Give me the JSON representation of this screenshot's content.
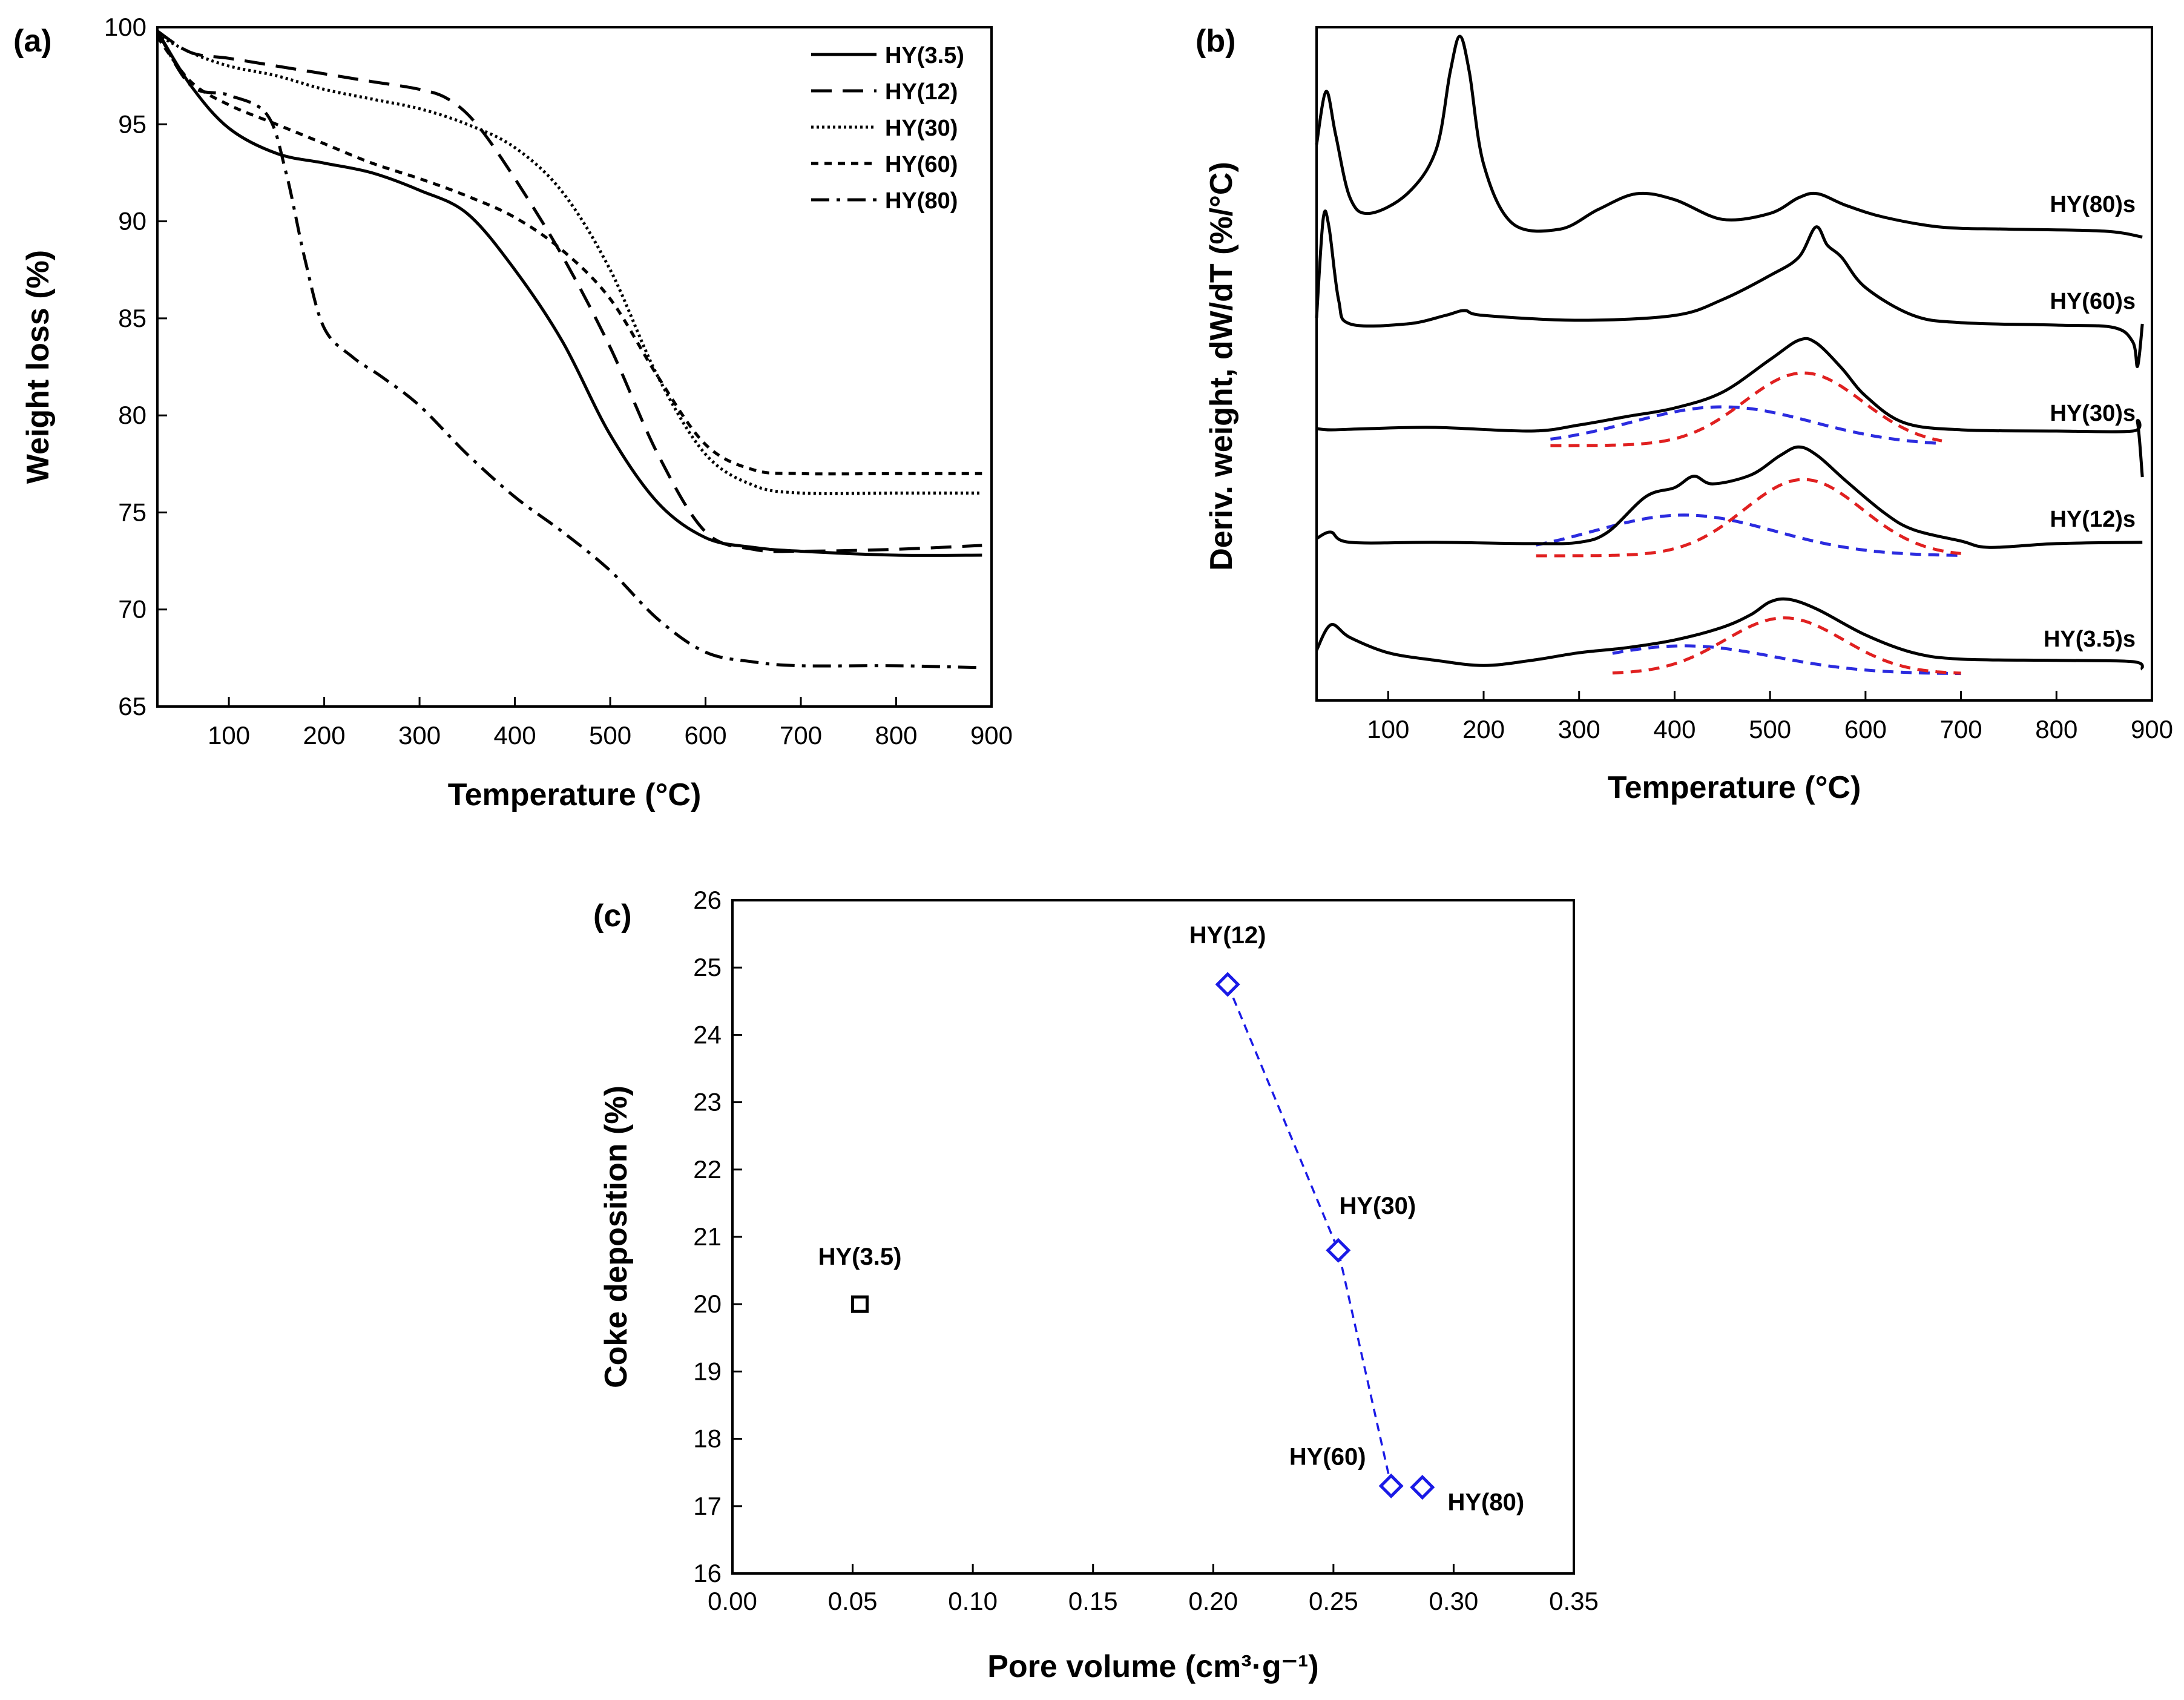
{
  "chart_data": [
    {
      "panel": "(a)",
      "type": "line",
      "xlabel": "Temperature (°C)",
      "ylabel": "Weight loss (%)",
      "xlim": [
        25,
        900
      ],
      "ylim": [
        65,
        100
      ],
      "xticks": [
        100,
        200,
        300,
        400,
        500,
        600,
        700,
        800,
        900
      ],
      "yticks": [
        65,
        70,
        75,
        80,
        85,
        90,
        95,
        100
      ],
      "legend_position": "top-right",
      "series": [
        {
          "name": "HY(3.5)",
          "style": "solid",
          "points": [
            [
              25,
              99.8
            ],
            [
              60,
              97
            ],
            [
              100,
              94.8
            ],
            [
              150,
              93.5
            ],
            [
              200,
              93
            ],
            [
              250,
              92.5
            ],
            [
              300,
              91.6
            ],
            [
              350,
              90.4
            ],
            [
              400,
              87.5
            ],
            [
              450,
              83.8
            ],
            [
              500,
              79
            ],
            [
              550,
              75.5
            ],
            [
              600,
              73.7
            ],
            [
              650,
              73.2
            ],
            [
              700,
              73
            ],
            [
              800,
              72.8
            ],
            [
              890,
              72.8
            ]
          ]
        },
        {
          "name": "HY(12)",
          "style": "dashed",
          "points": [
            [
              25,
              99.8
            ],
            [
              60,
              98.7
            ],
            [
              100,
              98.4
            ],
            [
              150,
              98
            ],
            [
              200,
              97.6
            ],
            [
              250,
              97.2
            ],
            [
              300,
              96.8
            ],
            [
              330,
              96.3
            ],
            [
              360,
              95
            ],
            [
              400,
              92.2
            ],
            [
              450,
              88.2
            ],
            [
              500,
              83.5
            ],
            [
              550,
              78
            ],
            [
              600,
              74
            ],
            [
              650,
              73.1
            ],
            [
              700,
              73
            ],
            [
              800,
              73.1
            ],
            [
              890,
              73.3
            ]
          ]
        },
        {
          "name": "HY(30)",
          "style": "dotted",
          "points": [
            [
              25,
              99.6
            ],
            [
              60,
              98.7
            ],
            [
              100,
              98
            ],
            [
              150,
              97.5
            ],
            [
              200,
              96.8
            ],
            [
              250,
              96.3
            ],
            [
              300,
              95.8
            ],
            [
              350,
              95
            ],
            [
              400,
              93.8
            ],
            [
              450,
              91.5
            ],
            [
              500,
              87.5
            ],
            [
              550,
              82
            ],
            [
              600,
              78
            ],
            [
              650,
              76.4
            ],
            [
              700,
              76
            ],
            [
              800,
              76
            ],
            [
              890,
              76
            ]
          ]
        },
        {
          "name": "HY(60)",
          "style": "short-dash",
          "points": [
            [
              25,
              99.5
            ],
            [
              60,
              97.2
            ],
            [
              100,
              96
            ],
            [
              150,
              95
            ],
            [
              200,
              94
            ],
            [
              250,
              93
            ],
            [
              300,
              92.2
            ],
            [
              350,
              91.3
            ],
            [
              400,
              90.2
            ],
            [
              450,
              88.5
            ],
            [
              500,
              86
            ],
            [
              550,
              82
            ],
            [
              600,
              78.5
            ],
            [
              650,
              77.2
            ],
            [
              700,
              77
            ],
            [
              800,
              77
            ],
            [
              890,
              77
            ]
          ]
        },
        {
          "name": "HY(80)",
          "style": "dash-dot",
          "points": [
            [
              25,
              99.8
            ],
            [
              60,
              97
            ],
            [
              100,
              96.5
            ],
            [
              140,
              95.5
            ],
            [
              160,
              92.5
            ],
            [
              180,
              88
            ],
            [
              200,
              84.5
            ],
            [
              230,
              83
            ],
            [
              260,
              82
            ],
            [
              300,
              80.5
            ],
            [
              350,
              78
            ],
            [
              400,
              75.8
            ],
            [
              450,
              74
            ],
            [
              500,
              72
            ],
            [
              550,
              69.5
            ],
            [
              600,
              67.8
            ],
            [
              650,
              67.3
            ],
            [
              700,
              67.1
            ],
            [
              800,
              67.1
            ],
            [
              890,
              67
            ]
          ]
        }
      ]
    },
    {
      "panel": "(b)",
      "type": "line",
      "xlabel": "Temperature (°C)",
      "ylabel": "Deriv. weight, dW/dT (%/°C)",
      "xlim": [
        25,
        900
      ],
      "xticks": [
        100,
        200,
        300,
        400,
        500,
        600,
        700,
        800,
        900
      ],
      "y_scale": "arbitrary, stacked traces",
      "series": [
        {
          "name": "HY(80)s",
          "points": [
            [
              25,
              0.45
            ],
            [
              35,
              0.72
            ],
            [
              45,
              0.5
            ],
            [
              60,
              0.18
            ],
            [
              80,
              0.1
            ],
            [
              120,
              0.2
            ],
            [
              150,
              0.42
            ],
            [
              165,
              0.82
            ],
            [
              175,
              1.0
            ],
            [
              185,
              0.82
            ],
            [
              200,
              0.35
            ],
            [
              230,
              0.05
            ],
            [
              280,
              0.02
            ],
            [
              320,
              0.12
            ],
            [
              360,
              0.2
            ],
            [
              400,
              0.17
            ],
            [
              450,
              0.07
            ],
            [
              500,
              0.1
            ],
            [
              530,
              0.18
            ],
            [
              550,
              0.2
            ],
            [
              580,
              0.14
            ],
            [
              620,
              0.08
            ],
            [
              680,
              0.03
            ],
            [
              750,
              0.02
            ],
            [
              850,
              0.01
            ],
            [
              890,
              -0.02
            ]
          ]
        },
        {
          "name": "HY(60)s",
          "points": [
            [
              25,
              0.1
            ],
            [
              32,
              0.92
            ],
            [
              38,
              0.85
            ],
            [
              48,
              0.25
            ],
            [
              60,
              0.05
            ],
            [
              120,
              0.05
            ],
            [
              160,
              0.12
            ],
            [
              180,
              0.16
            ],
            [
              200,
              0.12
            ],
            [
              300,
              0.08
            ],
            [
              400,
              0.12
            ],
            [
              450,
              0.25
            ],
            [
              500,
              0.45
            ],
            [
              530,
              0.6
            ],
            [
              548,
              0.85
            ],
            [
              560,
              0.7
            ],
            [
              575,
              0.6
            ],
            [
              600,
              0.35
            ],
            [
              650,
              0.12
            ],
            [
              700,
              0.06
            ],
            [
              800,
              0.04
            ],
            [
              860,
              0.02
            ],
            [
              880,
              -0.1
            ],
            [
              885,
              -0.3
            ],
            [
              890,
              0.05
            ]
          ]
        },
        {
          "name": "HY(30)s",
          "points": [
            [
              25,
              0.05
            ],
            [
              40,
              0.04
            ],
            [
              80,
              0.05
            ],
            [
              150,
              0.06
            ],
            [
              250,
              0.03
            ],
            [
              300,
              0.08
            ],
            [
              350,
              0.15
            ],
            [
              400,
              0.22
            ],
            [
              450,
              0.35
            ],
            [
              500,
              0.62
            ],
            [
              530,
              0.78
            ],
            [
              548,
              0.76
            ],
            [
              575,
              0.55
            ],
            [
              600,
              0.32
            ],
            [
              640,
              0.1
            ],
            [
              700,
              0.04
            ],
            [
              800,
              0.03
            ],
            [
              880,
              0.03
            ],
            [
              885,
              0.1
            ],
            [
              890,
              -0.35
            ]
          ]
        },
        {
          "name": "HY(12)s",
          "points": [
            [
              25,
              0.05
            ],
            [
              40,
              0.1
            ],
            [
              60,
              0.02
            ],
            [
              150,
              0.02
            ],
            [
              250,
              0.01
            ],
            [
              300,
              0.02
            ],
            [
              330,
              0.1
            ],
            [
              370,
              0.38
            ],
            [
              400,
              0.45
            ],
            [
              420,
              0.54
            ],
            [
              440,
              0.48
            ],
            [
              480,
              0.55
            ],
            [
              510,
              0.7
            ],
            [
              530,
              0.77
            ],
            [
              550,
              0.7
            ],
            [
              580,
              0.5
            ],
            [
              620,
              0.25
            ],
            [
              650,
              0.12
            ],
            [
              700,
              0.03
            ],
            [
              730,
              -0.02
            ],
            [
              800,
              0.01
            ],
            [
              890,
              0.02
            ]
          ]
        },
        {
          "name": "HY(3.5)s",
          "points": [
            [
              25,
              0.1
            ],
            [
              40,
              0.3
            ],
            [
              60,
              0.2
            ],
            [
              100,
              0.08
            ],
            [
              150,
              0.02
            ],
            [
              200,
              -0.02
            ],
            [
              250,
              0.02
            ],
            [
              300,
              0.08
            ],
            [
              350,
              0.12
            ],
            [
              400,
              0.18
            ],
            [
              450,
              0.28
            ],
            [
              480,
              0.38
            ],
            [
              500,
              0.48
            ],
            [
              520,
              0.5
            ],
            [
              550,
              0.42
            ],
            [
              600,
              0.22
            ],
            [
              650,
              0.08
            ],
            [
              700,
              0.03
            ],
            [
              800,
              0.02
            ],
            [
              880,
              0.01
            ],
            [
              890,
              -0.05
            ]
          ]
        }
      ],
      "deconvolution": [
        {
          "trace": "HY(30)s",
          "color": "#2b2bdf",
          "center": 450,
          "range": [
            270,
            680
          ]
        },
        {
          "trace": "HY(30)s",
          "color": "#e02020",
          "center": 535,
          "range": [
            270,
            680
          ]
        },
        {
          "trace": "HY(12)s",
          "color": "#2b2bdf",
          "center": 410,
          "range": [
            255,
            700
          ]
        },
        {
          "trace": "HY(12)s",
          "color": "#e02020",
          "center": 535,
          "range": [
            255,
            700
          ]
        },
        {
          "trace": "HY(3.5)s",
          "color": "#2b2bdf",
          "center": 410,
          "range": [
            335,
            700
          ]
        },
        {
          "trace": "HY(3.5)s",
          "color": "#e02020",
          "center": 515,
          "range": [
            335,
            700
          ]
        }
      ]
    },
    {
      "panel": "(c)",
      "type": "scatter",
      "xlabel": "Pore volume (cm³·g⁻¹)",
      "ylabel": "Coke deposition (%)",
      "xlim": [
        0,
        0.35
      ],
      "ylim": [
        16,
        26
      ],
      "xticks": [
        "0.00",
        "0.05",
        "0.10",
        "0.15",
        "0.20",
        "0.25",
        "0.30",
        "0.35"
      ],
      "yticks": [
        "16",
        "17",
        "18",
        "19",
        "20",
        "21",
        "22",
        "23",
        "24",
        "25",
        "26"
      ],
      "points": [
        {
          "label": "HY(3.5)",
          "x": 0.053,
          "y": 20.0,
          "marker": "square",
          "color": "#000000"
        },
        {
          "label": "HY(12)",
          "x": 0.206,
          "y": 24.75,
          "marker": "diamond",
          "color": "#1a1ae6"
        },
        {
          "label": "HY(30)",
          "x": 0.252,
          "y": 20.8,
          "marker": "diamond",
          "color": "#1a1ae6"
        },
        {
          "label": "HY(60)",
          "x": 0.274,
          "y": 17.3,
          "marker": "diamond",
          "color": "#1a1ae6"
        },
        {
          "label": "HY(80)",
          "x": 0.287,
          "y": 17.28,
          "marker": "diamond",
          "color": "#1a1ae6"
        }
      ],
      "trendline": {
        "color": "#1a1ae6",
        "style": "dashed",
        "through": [
          "HY(12)",
          "HY(30)",
          "HY(60)"
        ]
      }
    }
  ]
}
